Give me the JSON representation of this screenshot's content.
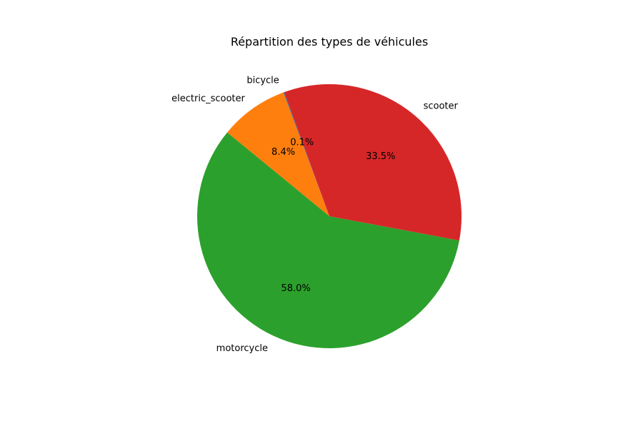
{
  "chart_data": {
    "type": "pie",
    "title": "Répartition des types de véhicules",
    "slices": [
      {
        "label": "bicycle",
        "value": 0.1,
        "pct_label": "0.1%",
        "color": "#1f77b4"
      },
      {
        "label": "electric_scooter",
        "value": 8.4,
        "pct_label": "8.4%",
        "color": "#ff7f0e"
      },
      {
        "label": "motorcycle",
        "value": 58.0,
        "pct_label": "58.0%",
        "color": "#2ca02c"
      },
      {
        "label": "scooter",
        "value": 33.5,
        "pct_label": "33.5%",
        "color": "#d62728"
      }
    ],
    "start_angle_deg": 110,
    "direction": "counterclockwise"
  }
}
